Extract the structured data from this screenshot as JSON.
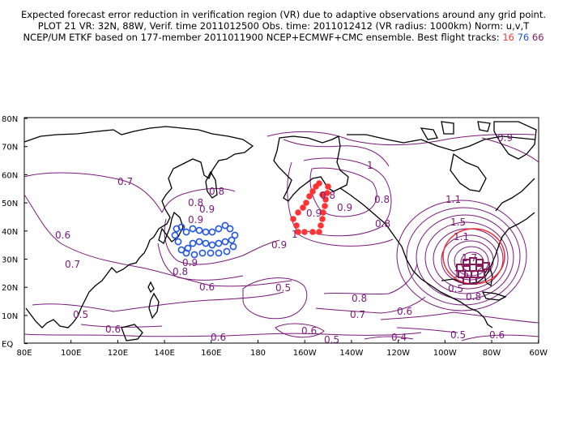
{
  "title": {
    "line1": "Expected forecast error reduction in verification region (VR) due to adaptive observations around any grid point.",
    "line2": "PLOT 21 VR: 32N, 88W, Verif. time 2011012500 Obs. time: 2011012412 (VR radius: 1000km) Norm: u,v,T",
    "line3_prefix": "NCEP/UM ETKF based on 177-member 2011011900 NCEP+ECMWF+CMC ensemble. Best flight tracks:",
    "track1": "16",
    "track2": "76",
    "track3": "66"
  },
  "axes": {
    "lat_labels": [
      "80N",
      "70N",
      "60N",
      "50N",
      "40N",
      "30N",
      "20N",
      "10N",
      "EQ"
    ],
    "lon_labels": [
      "80E",
      "100E",
      "120E",
      "140E",
      "160E",
      "180",
      "160W",
      "140W",
      "120W",
      "100W",
      "80W",
      "60W"
    ],
    "lat_range": [
      0,
      80
    ],
    "lon_range": [
      "80E",
      "60W"
    ]
  },
  "contour_labels": [
    "0.7",
    "0.6",
    "0.8",
    "0.8",
    "0.9",
    "0.8",
    "0.9",
    "0.7",
    "0.9",
    "0.6",
    "0.5",
    "0.6",
    "0.5",
    "0.6",
    "0.6",
    "0.5",
    "0.4",
    "0.5",
    "0.6",
    "0.8",
    "0.8",
    "0.9",
    "1",
    "0.9",
    "1",
    "0.8",
    "0.9",
    "0.8",
    "0.7",
    "0.6",
    "0.5",
    "0.8",
    "1.1",
    "1.5",
    "1.7",
    "1.5",
    "1.1",
    "0.9"
  ],
  "colors": {
    "contour": "#7a1a7a",
    "track16": "#ff3333",
    "track76": "#2255dd",
    "track66": "#8b1a5a",
    "vr_circle": "#ee3333",
    "coast": "#000000"
  }
}
